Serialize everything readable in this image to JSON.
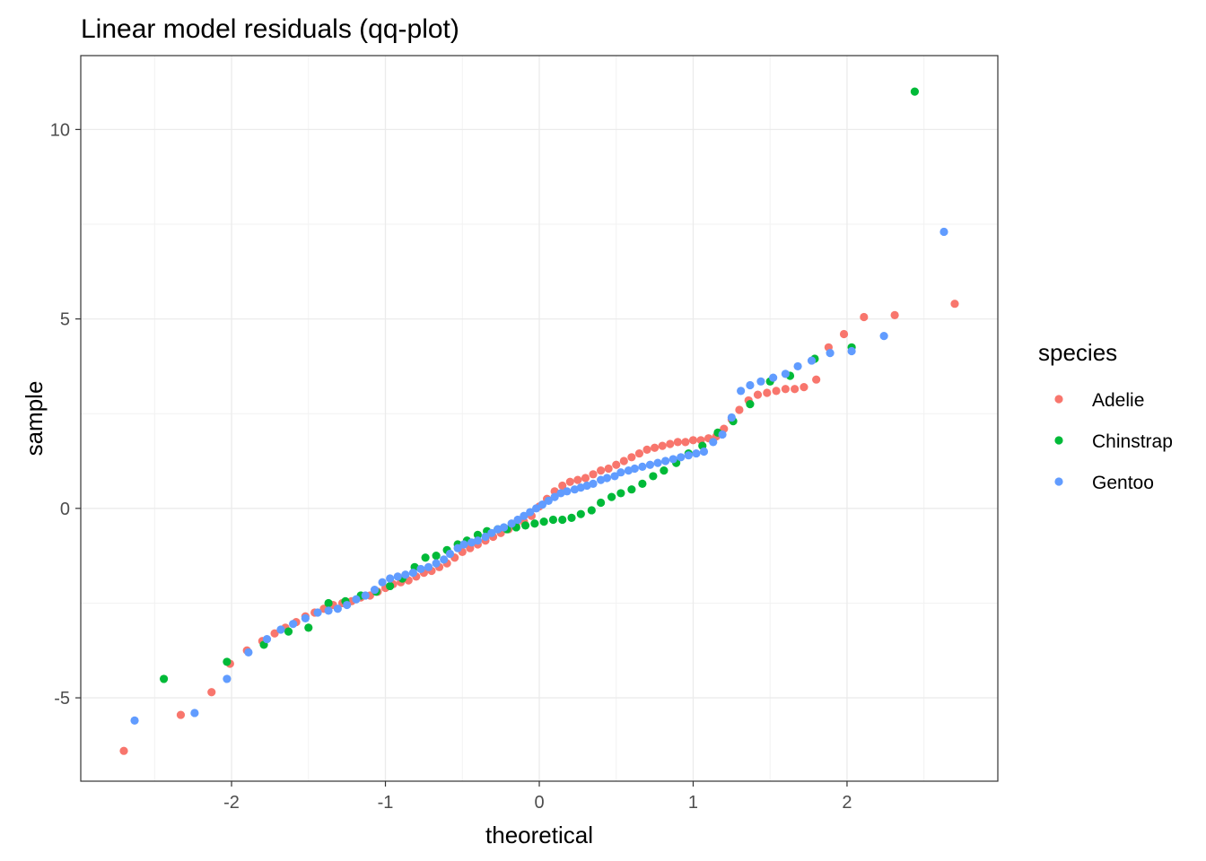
{
  "chart_data": {
    "type": "scatter",
    "title": "Linear model residuals (qq-plot)",
    "xlabel": "theoretical",
    "ylabel": "sample",
    "xlim": [
      -2.98,
      2.98
    ],
    "ylim": [
      -7.2,
      11.95
    ],
    "x_ticks": [
      -2,
      -1,
      0,
      1,
      2
    ],
    "x_tick_labels": [
      "-2",
      "-1",
      "0",
      "1",
      "2"
    ],
    "y_ticks": [
      -5,
      0,
      5,
      10
    ],
    "y_tick_labels": [
      "-5",
      "0",
      "5",
      "10"
    ],
    "grid": true,
    "legend": {
      "title": "species",
      "position": "right",
      "entries": [
        "Adelie",
        "Chinstrap",
        "Gentoo"
      ]
    },
    "series": [
      {
        "name": "Adelie",
        "color": "#F8766D",
        "points": [
          [
            -2.7,
            -6.4
          ],
          [
            -2.33,
            -5.45
          ],
          [
            -2.13,
            -4.85
          ],
          [
            -2.01,
            -4.1
          ],
          [
            -1.9,
            -3.75
          ],
          [
            -1.8,
            -3.5
          ],
          [
            -1.72,
            -3.3
          ],
          [
            -1.65,
            -3.15
          ],
          [
            -1.58,
            -3.0
          ],
          [
            -1.52,
            -2.85
          ],
          [
            -1.46,
            -2.75
          ],
          [
            -1.4,
            -2.65
          ],
          [
            -1.34,
            -2.55
          ],
          [
            -1.28,
            -2.5
          ],
          [
            -1.22,
            -2.45
          ],
          [
            -1.16,
            -2.35
          ],
          [
            -1.1,
            -2.3
          ],
          [
            -1.05,
            -2.2
          ],
          [
            -1.0,
            -2.1
          ],
          [
            -0.95,
            -2.0
          ],
          [
            -0.9,
            -1.95
          ],
          [
            -0.85,
            -1.9
          ],
          [
            -0.8,
            -1.8
          ],
          [
            -0.75,
            -1.7
          ],
          [
            -0.7,
            -1.65
          ],
          [
            -0.65,
            -1.55
          ],
          [
            -0.6,
            -1.45
          ],
          [
            -0.55,
            -1.3
          ],
          [
            -0.5,
            -1.15
          ],
          [
            -0.45,
            -1.05
          ],
          [
            -0.4,
            -0.95
          ],
          [
            -0.35,
            -0.85
          ],
          [
            -0.3,
            -0.75
          ],
          [
            -0.25,
            -0.65
          ],
          [
            -0.2,
            -0.55
          ],
          [
            -0.15,
            -0.45
          ],
          [
            -0.1,
            -0.35
          ],
          [
            -0.05,
            -0.2
          ],
          [
            0.0,
            0.05
          ],
          [
            0.05,
            0.25
          ],
          [
            0.1,
            0.45
          ],
          [
            0.15,
            0.6
          ],
          [
            0.2,
            0.7
          ],
          [
            0.25,
            0.75
          ],
          [
            0.3,
            0.8
          ],
          [
            0.35,
            0.9
          ],
          [
            0.4,
            1.0
          ],
          [
            0.45,
            1.05
          ],
          [
            0.5,
            1.15
          ],
          [
            0.55,
            1.25
          ],
          [
            0.6,
            1.35
          ],
          [
            0.65,
            1.45
          ],
          [
            0.7,
            1.55
          ],
          [
            0.75,
            1.6
          ],
          [
            0.8,
            1.65
          ],
          [
            0.85,
            1.7
          ],
          [
            0.9,
            1.75
          ],
          [
            0.95,
            1.75
          ],
          [
            1.0,
            1.8
          ],
          [
            1.05,
            1.8
          ],
          [
            1.1,
            1.85
          ],
          [
            1.15,
            1.9
          ],
          [
            1.2,
            2.1
          ],
          [
            1.25,
            2.35
          ],
          [
            1.3,
            2.6
          ],
          [
            1.36,
            2.85
          ],
          [
            1.42,
            3.0
          ],
          [
            1.48,
            3.05
          ],
          [
            1.54,
            3.1
          ],
          [
            1.6,
            3.15
          ],
          [
            1.66,
            3.15
          ],
          [
            1.72,
            3.2
          ],
          [
            1.8,
            3.4
          ],
          [
            1.88,
            4.25
          ],
          [
            1.98,
            4.6
          ],
          [
            2.11,
            5.05
          ],
          [
            2.31,
            5.1
          ],
          [
            2.7,
            5.4
          ]
        ]
      },
      {
        "name": "Chinstrap",
        "color": "#00BA38",
        "points": [
          [
            -2.44,
            -4.5
          ],
          [
            -2.03,
            -4.05
          ],
          [
            -1.79,
            -3.6
          ],
          [
            -1.63,
            -3.25
          ],
          [
            -1.5,
            -3.15
          ],
          [
            -1.37,
            -2.5
          ],
          [
            -1.26,
            -2.45
          ],
          [
            -1.16,
            -2.3
          ],
          [
            -1.06,
            -2.2
          ],
          [
            -0.97,
            -2.05
          ],
          [
            -0.89,
            -1.85
          ],
          [
            -0.81,
            -1.55
          ],
          [
            -0.74,
            -1.3
          ],
          [
            -0.67,
            -1.25
          ],
          [
            -0.6,
            -1.1
          ],
          [
            -0.53,
            -0.95
          ],
          [
            -0.47,
            -0.85
          ],
          [
            -0.4,
            -0.7
          ],
          [
            -0.34,
            -0.6
          ],
          [
            -0.27,
            -0.55
          ],
          [
            -0.21,
            -0.55
          ],
          [
            -0.15,
            -0.5
          ],
          [
            -0.09,
            -0.45
          ],
          [
            -0.03,
            -0.4
          ],
          [
            0.03,
            -0.35
          ],
          [
            0.09,
            -0.3
          ],
          [
            0.15,
            -0.3
          ],
          [
            0.21,
            -0.25
          ],
          [
            0.27,
            -0.15
          ],
          [
            0.34,
            -0.05
          ],
          [
            0.4,
            0.15
          ],
          [
            0.47,
            0.3
          ],
          [
            0.53,
            0.4
          ],
          [
            0.6,
            0.5
          ],
          [
            0.67,
            0.65
          ],
          [
            0.74,
            0.85
          ],
          [
            0.81,
            1.0
          ],
          [
            0.89,
            1.2
          ],
          [
            0.97,
            1.45
          ],
          [
            1.06,
            1.65
          ],
          [
            1.16,
            2.0
          ],
          [
            1.26,
            2.3
          ],
          [
            1.37,
            2.75
          ],
          [
            1.5,
            3.35
          ],
          [
            1.63,
            3.5
          ],
          [
            1.79,
            3.95
          ],
          [
            2.03,
            4.25
          ],
          [
            2.44,
            11.0
          ]
        ]
      },
      {
        "name": "Gentoo",
        "color": "#619CFF",
        "points": [
          [
            -2.63,
            -5.6
          ],
          [
            -2.24,
            -5.4
          ],
          [
            -2.03,
            -4.5
          ],
          [
            -1.89,
            -3.8
          ],
          [
            -1.77,
            -3.45
          ],
          [
            -1.68,
            -3.2
          ],
          [
            -1.6,
            -3.05
          ],
          [
            -1.52,
            -2.9
          ],
          [
            -1.44,
            -2.75
          ],
          [
            -1.37,
            -2.7
          ],
          [
            -1.31,
            -2.65
          ],
          [
            -1.25,
            -2.55
          ],
          [
            -1.19,
            -2.4
          ],
          [
            -1.13,
            -2.3
          ],
          [
            -1.07,
            -2.15
          ],
          [
            -1.02,
            -1.95
          ],
          [
            -0.97,
            -1.85
          ],
          [
            -0.92,
            -1.8
          ],
          [
            -0.87,
            -1.75
          ],
          [
            -0.82,
            -1.7
          ],
          [
            -0.77,
            -1.6
          ],
          [
            -0.72,
            -1.55
          ],
          [
            -0.67,
            -1.45
          ],
          [
            -0.62,
            -1.35
          ],
          [
            -0.58,
            -1.2
          ],
          [
            -0.53,
            -1.05
          ],
          [
            -0.49,
            -0.95
          ],
          [
            -0.44,
            -0.9
          ],
          [
            -0.4,
            -0.85
          ],
          [
            -0.35,
            -0.75
          ],
          [
            -0.31,
            -0.65
          ],
          [
            -0.27,
            -0.55
          ],
          [
            -0.23,
            -0.5
          ],
          [
            -0.18,
            -0.4
          ],
          [
            -0.14,
            -0.3
          ],
          [
            -0.1,
            -0.2
          ],
          [
            -0.06,
            -0.1
          ],
          [
            -0.02,
            0.0
          ],
          [
            0.02,
            0.1
          ],
          [
            0.06,
            0.2
          ],
          [
            0.1,
            0.3
          ],
          [
            0.14,
            0.4
          ],
          [
            0.18,
            0.45
          ],
          [
            0.23,
            0.5
          ],
          [
            0.27,
            0.55
          ],
          [
            0.31,
            0.6
          ],
          [
            0.35,
            0.65
          ],
          [
            0.4,
            0.75
          ],
          [
            0.44,
            0.8
          ],
          [
            0.49,
            0.85
          ],
          [
            0.53,
            0.95
          ],
          [
            0.58,
            1.0
          ],
          [
            0.62,
            1.05
          ],
          [
            0.67,
            1.1
          ],
          [
            0.72,
            1.15
          ],
          [
            0.77,
            1.2
          ],
          [
            0.82,
            1.25
          ],
          [
            0.87,
            1.3
          ],
          [
            0.92,
            1.35
          ],
          [
            0.97,
            1.4
          ],
          [
            1.02,
            1.45
          ],
          [
            1.07,
            1.5
          ],
          [
            1.13,
            1.75
          ],
          [
            1.19,
            1.95
          ],
          [
            1.25,
            2.4
          ],
          [
            1.31,
            3.1
          ],
          [
            1.37,
            3.25
          ],
          [
            1.44,
            3.35
          ],
          [
            1.52,
            3.45
          ],
          [
            1.6,
            3.55
          ],
          [
            1.68,
            3.75
          ],
          [
            1.77,
            3.9
          ],
          [
            1.89,
            4.1
          ],
          [
            2.03,
            4.15
          ],
          [
            2.24,
            4.55
          ],
          [
            2.63,
            7.3
          ]
        ]
      }
    ]
  }
}
